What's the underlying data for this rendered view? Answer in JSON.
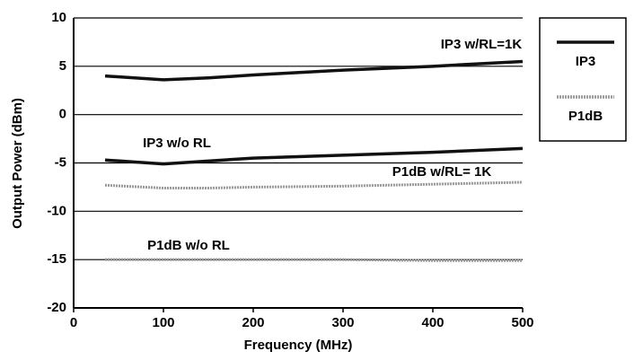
{
  "chart_data": {
    "type": "line",
    "x_label": "Frequency (MHz)",
    "y_label": "Output Power (dBm)",
    "x": [
      35,
      100,
      150,
      200,
      300,
      400,
      500
    ],
    "series": [
      {
        "name": "IP3 w/RL=1K",
        "color": "#111111",
        "values": [
          4.0,
          3.6,
          3.8,
          4.1,
          4.6,
          5.0,
          5.5
        ]
      },
      {
        "name": "IP3 w/o RL",
        "color": "#111111",
        "values": [
          -4.7,
          -5.1,
          -4.8,
          -4.5,
          -4.2,
          -3.9,
          -3.5
        ]
      },
      {
        "name": "P1dB w/RL= 1K",
        "color": "#999999",
        "values": [
          -7.3,
          -7.6,
          -7.6,
          -7.5,
          -7.4,
          -7.2,
          -7.0
        ]
      },
      {
        "name": "P1dB w/o RL",
        "color": "#999999",
        "values": [
          -15.0,
          -15.0,
          -15.0,
          -15.0,
          -15.0,
          -15.1,
          -15.1
        ]
      }
    ],
    "legend": [
      {
        "name": "IP3",
        "color": "#111111"
      },
      {
        "name": "P1dB",
        "color": "#999999"
      }
    ],
    "xlim": [
      0,
      500
    ],
    "xticks": [
      0,
      100,
      200,
      300,
      400,
      500
    ],
    "ylim": [
      -20,
      10
    ],
    "yticks": [
      -20,
      -15,
      -10,
      -5,
      0,
      5,
      10
    ],
    "grid": true
  }
}
